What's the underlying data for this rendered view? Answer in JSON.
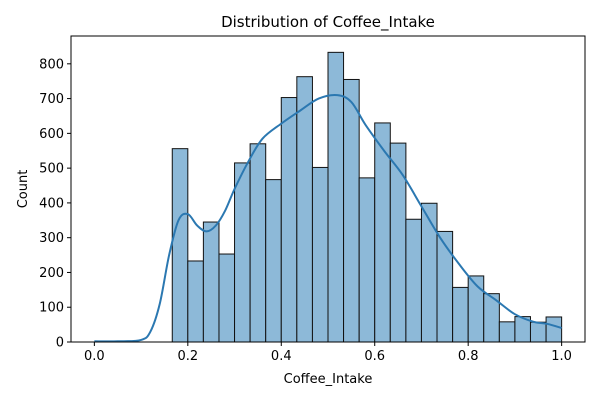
{
  "chart_data": {
    "type": "bar",
    "subtype": "histogram-with-kde",
    "title": "Distribution of Coffee_Intake",
    "xlabel": "Coffee_Intake",
    "ylabel": "Count",
    "xlim": [
      -0.05,
      1.05
    ],
    "ylim": [
      0,
      880
    ],
    "xticks": [
      0.0,
      0.2,
      0.4,
      0.6,
      0.8,
      1.0
    ],
    "xtick_labels": [
      "0.0",
      "0.2",
      "0.4",
      "0.6",
      "0.8",
      "1.0"
    ],
    "yticks": [
      0,
      100,
      200,
      300,
      400,
      500,
      600,
      700,
      800
    ],
    "ytick_labels": [
      "0",
      "100",
      "200",
      "300",
      "400",
      "500",
      "600",
      "700",
      "800"
    ],
    "grid": false,
    "bins": {
      "edges": [
        0.1667,
        0.2,
        0.2333,
        0.2667,
        0.3,
        0.3333,
        0.3667,
        0.4,
        0.4333,
        0.4667,
        0.5,
        0.5333,
        0.5667,
        0.6,
        0.6333,
        0.6667,
        0.7,
        0.7333,
        0.7667,
        0.8,
        0.8333,
        0.8667,
        0.9,
        0.9333,
        0.9667,
        1.0
      ],
      "counts": [
        556,
        233,
        345,
        253,
        515,
        570,
        467,
        703,
        763,
        502,
        833,
        755,
        472,
        630,
        572,
        353,
        399,
        318,
        157,
        190,
        139,
        58,
        73,
        57,
        72
      ]
    },
    "kde": {
      "x": [
        0.0,
        0.05,
        0.1,
        0.12,
        0.14,
        0.16,
        0.18,
        0.2,
        0.22,
        0.24,
        0.26,
        0.28,
        0.3,
        0.33,
        0.36,
        0.4,
        0.44,
        0.48,
        0.52,
        0.55,
        0.58,
        0.62,
        0.66,
        0.7,
        0.74,
        0.78,
        0.82,
        0.86,
        0.9,
        0.94,
        0.97,
        1.0
      ],
      "y": [
        2,
        2,
        6,
        30,
        110,
        250,
        350,
        368,
        335,
        318,
        335,
        378,
        440,
        520,
        585,
        628,
        665,
        700,
        710,
        690,
        625,
        550,
        480,
        390,
        300,
        225,
        160,
        120,
        80,
        58,
        52,
        40
      ]
    },
    "colors": {
      "bar_fill": "#8db9d8",
      "bar_edge": "#111111",
      "kde_line": "#2b78b1"
    }
  }
}
